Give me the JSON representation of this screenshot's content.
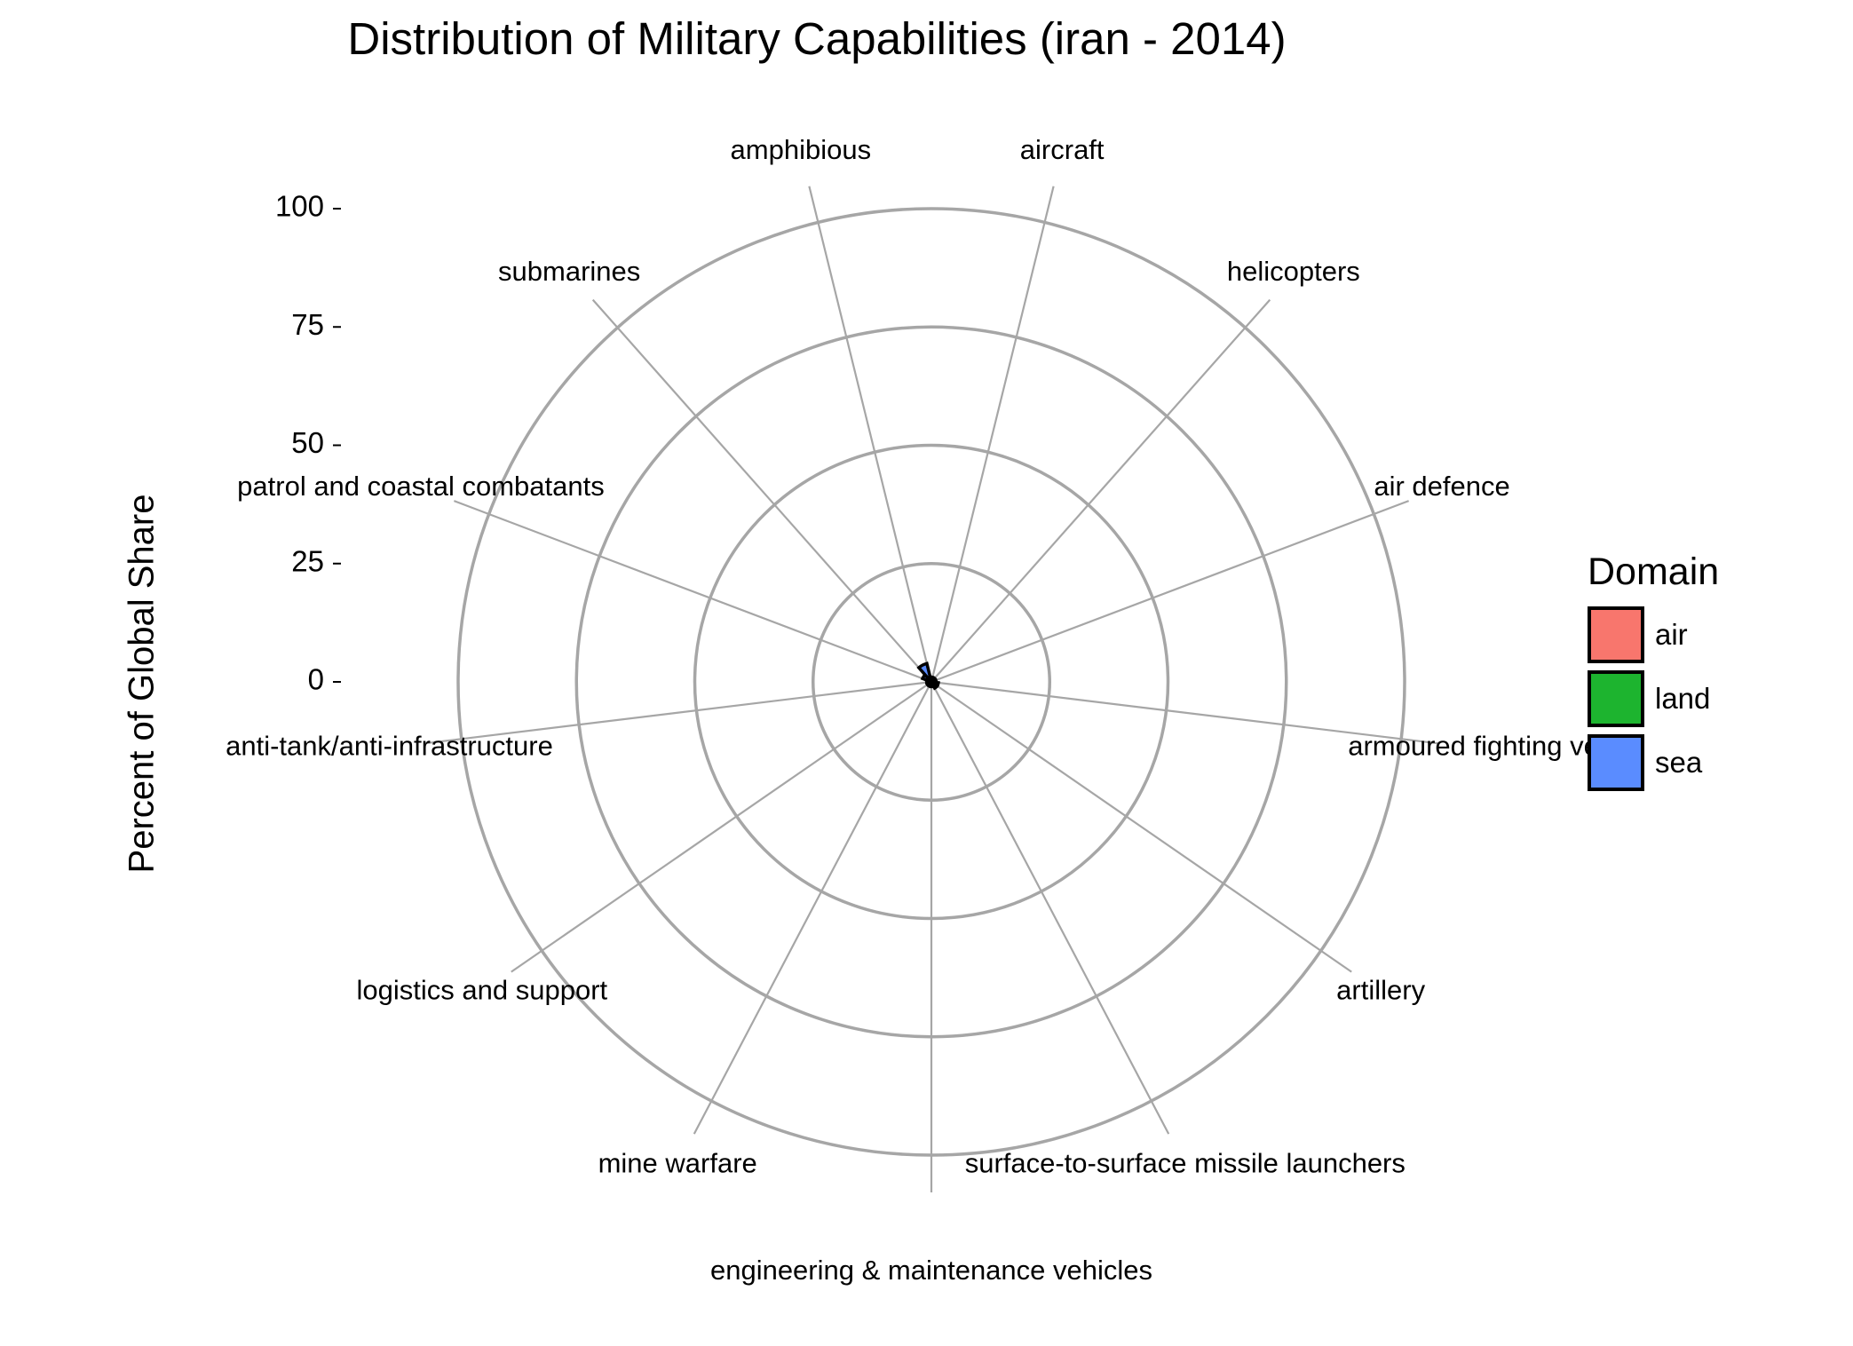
{
  "chart_data": {
    "type": "radar",
    "title": "Distribution of Military Capabilities (iran - 2014)",
    "ylabel": "Percent of Global Share",
    "ylim": [
      0,
      100
    ],
    "y_ticks": [
      "0",
      "25",
      "50",
      "75",
      "100"
    ],
    "legend": {
      "title": "Domain",
      "placement": "right",
      "items": [
        {
          "label": "air",
          "color": "#F8766D"
        },
        {
          "label": "land",
          "color": "#1DB42F"
        },
        {
          "label": "sea",
          "color": "#5A8CFF"
        }
      ]
    },
    "categories": [
      "amphibious",
      "aircraft",
      "helicopters",
      "air defence",
      "armoured fighting ve",
      "artillery",
      "surface-to-surface missile launchers",
      "engineering & maintenance vehicles",
      "mine warfare",
      "logistics and support",
      "anti-tank/anti-infrastructure",
      "patrol and coastal combatants",
      "submarines"
    ],
    "category_domains": [
      "sea",
      "air",
      "air",
      "air",
      "land",
      "land",
      "land",
      "land",
      "sea",
      "land",
      "land",
      "sea",
      "sea"
    ],
    "values": [
      1,
      1,
      1,
      1,
      1.5,
      1.5,
      1,
      1,
      1,
      1,
      1,
      2,
      4
    ]
  }
}
